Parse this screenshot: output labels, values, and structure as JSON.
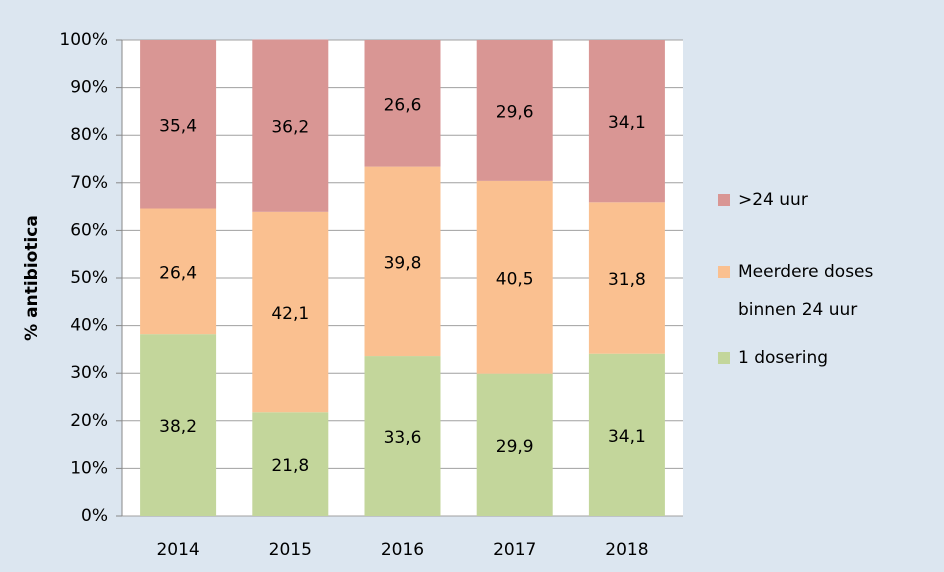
{
  "chart_data": {
    "type": "stacked_bar",
    "y_label": "% antibiotica",
    "categories": [
      "2014",
      "2015",
      "2016",
      "2017",
      "2018"
    ],
    "series": [
      {
        "name": "1 dosering",
        "color": "#c3d69b",
        "values": [
          38.2,
          21.8,
          33.6,
          29.9,
          34.1
        ],
        "value_labels": [
          "38,2",
          "21,8",
          "33,6",
          "29,9",
          "34,1"
        ]
      },
      {
        "name": "Meerdere doses binnen 24 uur",
        "color": "#fac090",
        "values": [
          26.4,
          42.1,
          39.8,
          40.5,
          31.8
        ],
        "value_labels": [
          "26,4",
          "42,1",
          "39,8",
          "40,5",
          "31,8"
        ]
      },
      {
        "name": ">24 uur",
        "color": "#d99694",
        "values": [
          35.4,
          36.2,
          26.6,
          29.6,
          34.1
        ],
        "value_labels": [
          "35,4",
          "36,2",
          "26,6",
          "29,6",
          "34,1"
        ]
      }
    ],
    "ylim": [
      0,
      100
    ],
    "yticks": [
      {
        "value": 0,
        "label": "0%"
      },
      {
        "value": 10,
        "label": "10%"
      },
      {
        "value": 20,
        "label": "20%"
      },
      {
        "value": 30,
        "label": "30%"
      },
      {
        "value": 40,
        "label": "40%"
      },
      {
        "value": 50,
        "label": "50%"
      },
      {
        "value": 60,
        "label": "60%"
      },
      {
        "value": 70,
        "label": "70%"
      },
      {
        "value": 80,
        "label": "80%"
      },
      {
        "value": 90,
        "label": "90%"
      },
      {
        "value": 100,
        "label": "100%"
      }
    ],
    "grid": true,
    "legend": "right"
  }
}
